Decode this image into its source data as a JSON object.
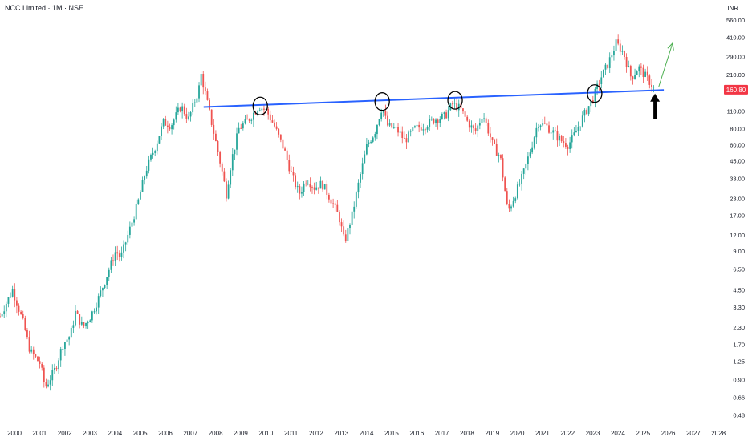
{
  "header": {
    "title": "NCC Limited · 1M · NSE",
    "currency": "INR"
  },
  "colors": {
    "up": "#26a69a",
    "down": "#ef5350",
    "trendline": "#2962ff",
    "price_box": "#f23645",
    "arrow_up": "#4caf50",
    "arrow_down": "#000000"
  },
  "chart_data": {
    "type": "candlestick",
    "timeframe": "1M",
    "scale": "log",
    "y_ticks": [
      "560.00",
      "410.00",
      "290.00",
      "210.00",
      "110.00",
      "80.00",
      "60.00",
      "45.00",
      "33.00",
      "23.00",
      "17.00",
      "12.00",
      "9.00",
      "6.50",
      "4.50",
      "3.30",
      "2.30",
      "1.70",
      "1.25",
      "0.90",
      "0.66",
      "0.48"
    ],
    "x_ticks": [
      "2000",
      "2001",
      "2002",
      "2003",
      "2004",
      "2005",
      "2006",
      "2007",
      "2008",
      "2009",
      "2010",
      "2011",
      "2012",
      "2013",
      "2014",
      "2015",
      "2016",
      "2017",
      "2018",
      "2019",
      "2020",
      "2021",
      "2022",
      "2023",
      "2024",
      "2025",
      "2026",
      "2027",
      "2028"
    ],
    "last_price": "160.80",
    "ylim": [
      0.45,
      600
    ],
    "xlim": [
      2000.0,
      2028.6
    ],
    "price_path": [
      [
        2000.0,
        2.8
      ],
      [
        2000.5,
        4.5
      ],
      [
        2000.9,
        2.6
      ],
      [
        2001.2,
        1.5
      ],
      [
        2001.6,
        1.2
      ],
      [
        2001.8,
        0.78
      ],
      [
        2002.2,
        1.1
      ],
      [
        2002.5,
        1.7
      ],
      [
        2002.8,
        2.0
      ],
      [
        2003.0,
        3.0
      ],
      [
        2003.3,
        2.3
      ],
      [
        2003.6,
        2.8
      ],
      [
        2003.9,
        3.8
      ],
      [
        2004.3,
        6.2
      ],
      [
        2004.6,
        9.0
      ],
      [
        2004.8,
        8.0
      ],
      [
        2005.2,
        14.0
      ],
      [
        2005.5,
        22.0
      ],
      [
        2005.8,
        38.0
      ],
      [
        2006.2,
        60.0
      ],
      [
        2006.5,
        90.0
      ],
      [
        2006.8,
        85.0
      ],
      [
        2007.2,
        120.0
      ],
      [
        2007.5,
        95.0
      ],
      [
        2007.9,
        160.0
      ],
      [
        2008.0,
        210.0
      ],
      [
        2008.2,
        140.0
      ],
      [
        2008.5,
        75.0
      ],
      [
        2008.8,
        40.0
      ],
      [
        2009.0,
        25.0
      ],
      [
        2009.2,
        45.0
      ],
      [
        2009.5,
        80.0
      ],
      [
        2009.9,
        95.0
      ],
      [
        2010.3,
        120.0
      ],
      [
        2010.6,
        110.0
      ],
      [
        2010.9,
        85.0
      ],
      [
        2011.3,
        55.0
      ],
      [
        2011.6,
        35.0
      ],
      [
        2011.9,
        25.0
      ],
      [
        2012.2,
        33.0
      ],
      [
        2012.5,
        28.0
      ],
      [
        2012.8,
        30.0
      ],
      [
        2013.2,
        22.0
      ],
      [
        2013.5,
        16.0
      ],
      [
        2013.7,
        10.5
      ],
      [
        2014.0,
        17.0
      ],
      [
        2014.3,
        33.0
      ],
      [
        2014.6,
        60.0
      ],
      [
        2014.9,
        75.0
      ],
      [
        2015.2,
        120.0
      ],
      [
        2015.4,
        85.0
      ],
      [
        2015.8,
        78.0
      ],
      [
        2016.1,
        65.0
      ],
      [
        2016.5,
        80.0
      ],
      [
        2016.9,
        85.0
      ],
      [
        2017.3,
        95.0
      ],
      [
        2017.7,
        100.0
      ],
      [
        2018.0,
        125.0
      ],
      [
        2018.3,
        115.0
      ],
      [
        2018.6,
        90.0
      ],
      [
        2018.9,
        75.0
      ],
      [
        2019.2,
        105.0
      ],
      [
        2019.6,
        60.0
      ],
      [
        2019.9,
        48.0
      ],
      [
        2020.2,
        18.0
      ],
      [
        2020.5,
        25.0
      ],
      [
        2020.8,
        35.0
      ],
      [
        2021.1,
        55.0
      ],
      [
        2021.4,
        90.0
      ],
      [
        2021.7,
        85.0
      ],
      [
        2022.0,
        75.0
      ],
      [
        2022.3,
        65.0
      ],
      [
        2022.6,
        60.0
      ],
      [
        2022.9,
        75.0
      ],
      [
        2023.2,
        100.0
      ],
      [
        2023.6,
        140.0
      ],
      [
        2023.9,
        200.0
      ],
      [
        2024.2,
        260.0
      ],
      [
        2024.5,
        370.0
      ],
      [
        2024.8,
        310.0
      ],
      [
        2025.1,
        200.0
      ],
      [
        2025.4,
        240.0
      ],
      [
        2025.8,
        190.0
      ],
      [
        2026.05,
        160.8
      ]
    ],
    "trendline": {
      "x": [
        2008.1,
        2026.4
      ],
      "y": [
        118.0,
        160.0
      ]
    },
    "circles": [
      {
        "x": 2010.35,
        "y": 120.0
      },
      {
        "x": 2015.2,
        "y": 130.0
      },
      {
        "x": 2018.1,
        "y": 133.0
      },
      {
        "x": 2023.65,
        "y": 150.0
      }
    ],
    "projection_arrow": {
      "from": [
        2026.2,
        170.0
      ],
      "to": [
        2026.75,
        370.0
      ]
    },
    "marker_arrow": {
      "x": 2026.05,
      "y_tip": 150.0,
      "y_tail": 95.0
    }
  }
}
